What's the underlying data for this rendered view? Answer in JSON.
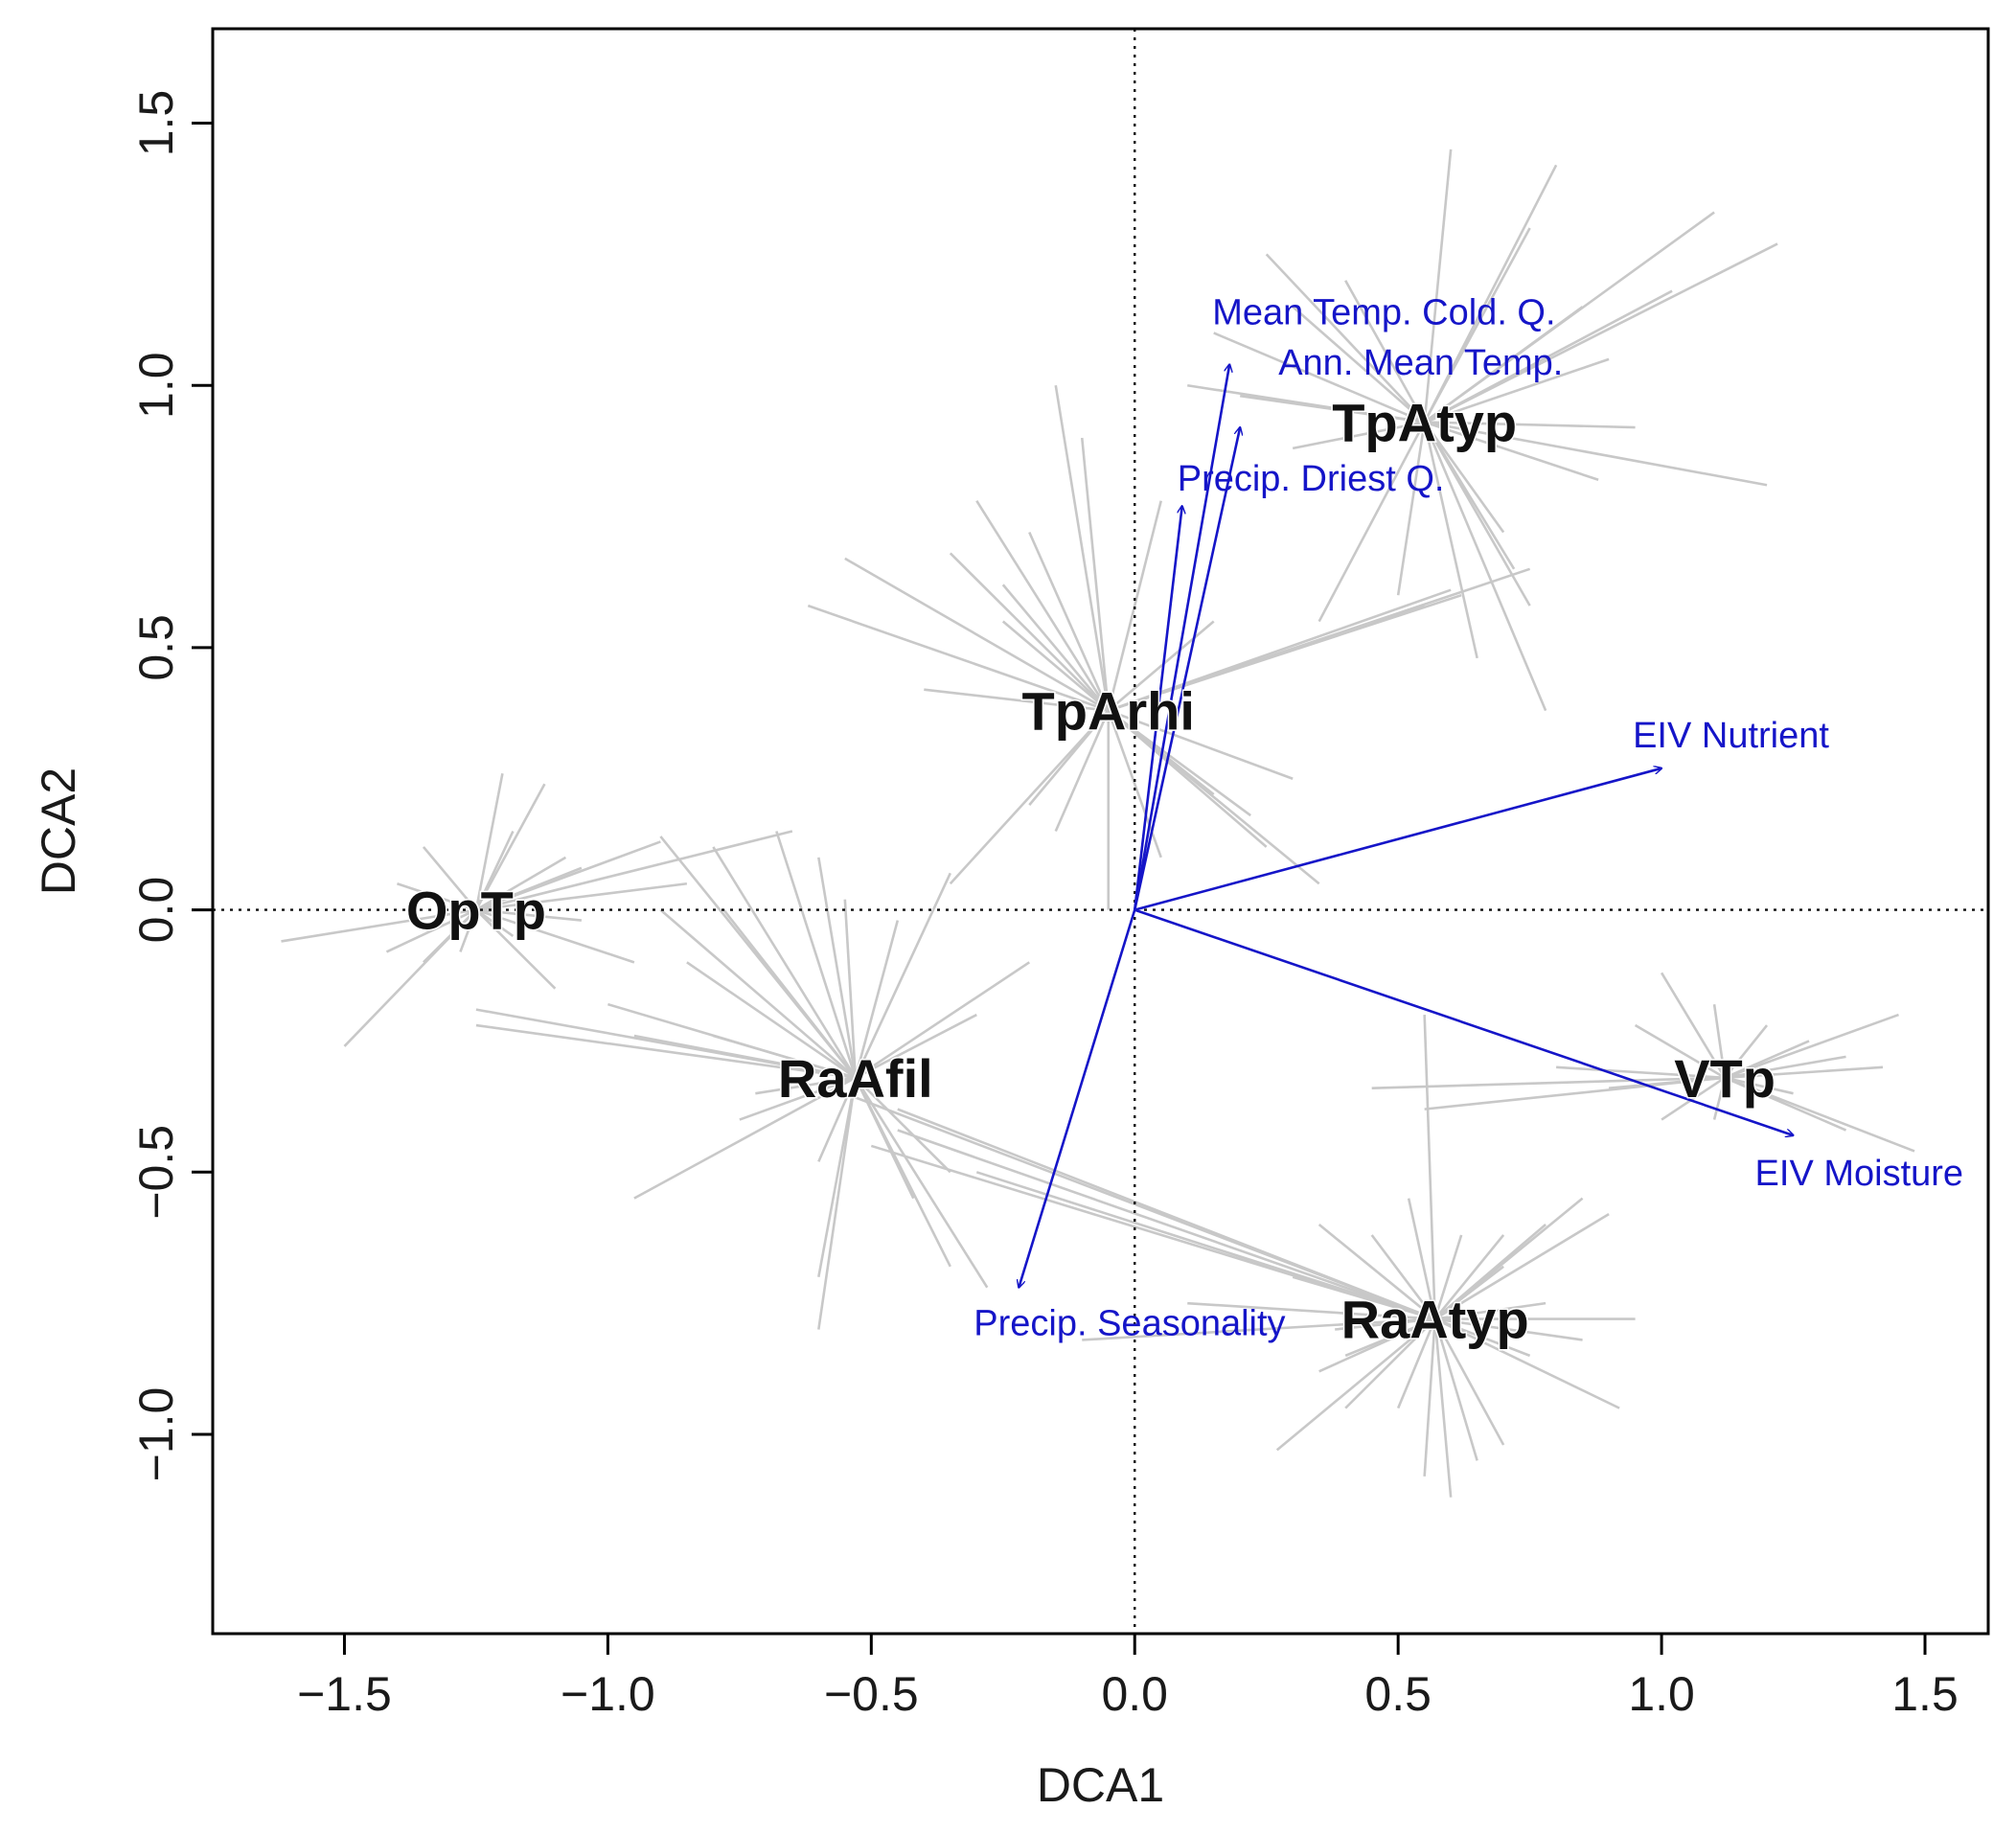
{
  "chart_data": {
    "type": "scatter",
    "subtype": "DCA ordination biplot with spider diagram and environmental fit vectors",
    "title": "",
    "xlabel": "DCA1",
    "ylabel": "DCA2",
    "xlim": [
      -1.75,
      1.62
    ],
    "ylim": [
      -1.38,
      1.68
    ],
    "xticks": [
      "-1.5",
      "-1.0",
      "-0.5",
      "0.0",
      "0.5",
      "1.0",
      "1.5"
    ],
    "yticks": [
      "-1.0",
      "-0.5",
      "0.0",
      "0.5",
      "1.0",
      "1.5"
    ],
    "reference_lines": {
      "x": 0,
      "y": 0,
      "style": "dotted"
    },
    "colors": {
      "spider": "#c8c8c8",
      "vector": "#1515c8",
      "group_label": "#111111",
      "axis": "#000000"
    },
    "groups": [
      {
        "name": "TpAtyp",
        "centroid": [
          0.55,
          0.93
        ],
        "spokes": [
          [
            0.6,
            1.45
          ],
          [
            0.8,
            1.42
          ],
          [
            0.75,
            1.3
          ],
          [
            1.1,
            1.33
          ],
          [
            1.22,
            1.27
          ],
          [
            1.02,
            1.18
          ],
          [
            0.85,
            1.15
          ],
          [
            0.25,
            1.25
          ],
          [
            0.3,
            1.15
          ],
          [
            0.15,
            1.1
          ],
          [
            0.4,
            1.2
          ],
          [
            0.9,
            1.05
          ],
          [
            1.2,
            0.81
          ],
          [
            0.95,
            0.92
          ],
          [
            0.1,
            1.0
          ],
          [
            0.2,
            0.98
          ],
          [
            0.7,
            0.72
          ],
          [
            0.75,
            0.58
          ],
          [
            0.5,
            0.6
          ],
          [
            0.78,
            0.38
          ],
          [
            0.65,
            0.48
          ],
          [
            0.35,
            0.55
          ],
          [
            0.72,
            0.65
          ],
          [
            0.88,
            0.82
          ],
          [
            0.3,
            0.88
          ]
        ]
      },
      {
        "name": "TpArhi",
        "centroid": [
          -0.05,
          0.38
        ],
        "spokes": [
          [
            -0.15,
            1.0
          ],
          [
            -0.1,
            0.9
          ],
          [
            -0.2,
            0.72
          ],
          [
            -0.35,
            0.68
          ],
          [
            -0.55,
            0.67
          ],
          [
            -0.62,
            0.58
          ],
          [
            -0.25,
            0.55
          ],
          [
            -0.4,
            0.42
          ],
          [
            -0.25,
            0.62
          ],
          [
            -0.3,
            0.78
          ],
          [
            0.05,
            0.78
          ],
          [
            0.15,
            0.55
          ],
          [
            0.6,
            0.61
          ],
          [
            0.75,
            0.65
          ],
          [
            0.55,
            0.58
          ],
          [
            0.62,
            0.6
          ],
          [
            0.3,
            0.25
          ],
          [
            0.25,
            0.12
          ],
          [
            0.35,
            0.05
          ],
          [
            0.22,
            0.18
          ],
          [
            -0.05,
            0.0
          ],
          [
            -0.15,
            0.15
          ],
          [
            -0.35,
            0.05
          ],
          [
            0.05,
            0.1
          ],
          [
            0.15,
            0.22
          ],
          [
            -0.2,
            0.2
          ]
        ]
      },
      {
        "name": "OpTp",
        "centroid": [
          -1.25,
          0.0
        ],
        "spokes": [
          [
            -1.62,
            -0.06
          ],
          [
            -1.5,
            -0.26
          ],
          [
            -1.42,
            -0.08
          ],
          [
            -1.2,
            0.26
          ],
          [
            -1.12,
            0.24
          ],
          [
            -1.35,
            0.12
          ],
          [
            -1.18,
            0.15
          ],
          [
            -0.9,
            0.13
          ],
          [
            -0.65,
            0.15
          ],
          [
            -0.85,
            0.05
          ],
          [
            -1.05,
            0.08
          ],
          [
            -1.1,
            -0.15
          ],
          [
            -1.35,
            -0.1
          ],
          [
            -1.4,
            0.05
          ],
          [
            -1.18,
            -0.05
          ],
          [
            -1.28,
            -0.08
          ],
          [
            -1.05,
            -0.02
          ],
          [
            -0.95,
            -0.1
          ],
          [
            -1.08,
            0.1
          ]
        ]
      },
      {
        "name": "RaAfil",
        "centroid": [
          -0.53,
          -0.32
        ],
        "spokes": [
          [
            -1.25,
            -0.19
          ],
          [
            -1.25,
            -0.22
          ],
          [
            -1.0,
            -0.18
          ],
          [
            -0.95,
            -0.24
          ],
          [
            -0.8,
            -0.24
          ],
          [
            -0.85,
            -0.1
          ],
          [
            -0.9,
            0.0
          ],
          [
            -0.9,
            0.14
          ],
          [
            -0.8,
            0.12
          ],
          [
            -0.68,
            0.15
          ],
          [
            -0.6,
            0.1
          ],
          [
            -0.78,
            0.0
          ],
          [
            -0.55,
            0.02
          ],
          [
            -0.45,
            -0.02
          ],
          [
            -0.35,
            0.07
          ],
          [
            -0.2,
            -0.1
          ],
          [
            -0.3,
            -0.2
          ],
          [
            -0.6,
            -0.48
          ],
          [
            -0.95,
            -0.55
          ],
          [
            -0.75,
            -0.4
          ],
          [
            -0.6,
            -0.7
          ],
          [
            -0.6,
            -0.8
          ],
          [
            -0.42,
            -0.55
          ],
          [
            -0.35,
            -0.68
          ],
          [
            -0.28,
            -0.72
          ],
          [
            -0.35,
            -0.5
          ],
          [
            -0.72,
            -0.35
          ]
        ]
      },
      {
        "name": "RaAtyp",
        "centroid": [
          0.57,
          -0.78
        ],
        "spokes": [
          [
            -0.1,
            -0.82
          ],
          [
            0.3,
            -0.7
          ],
          [
            0.35,
            -0.6
          ],
          [
            0.45,
            -0.62
          ],
          [
            0.1,
            -0.75
          ],
          [
            0.38,
            -0.8
          ],
          [
            0.4,
            -0.85
          ],
          [
            0.7,
            -0.62
          ],
          [
            0.78,
            -0.6
          ],
          [
            0.85,
            -0.55
          ],
          [
            0.9,
            -0.58
          ],
          [
            0.7,
            -0.68
          ],
          [
            0.78,
            -0.75
          ],
          [
            0.95,
            -0.78
          ],
          [
            0.85,
            -0.82
          ],
          [
            0.92,
            -0.95
          ],
          [
            0.75,
            -0.85
          ],
          [
            0.7,
            -1.02
          ],
          [
            0.65,
            -1.05
          ],
          [
            0.6,
            -1.12
          ],
          [
            0.55,
            -1.08
          ],
          [
            0.5,
            -0.95
          ],
          [
            0.4,
            -0.95
          ],
          [
            0.27,
            -1.03
          ],
          [
            0.35,
            -0.88
          ],
          [
            0.52,
            -0.55
          ],
          [
            0.62,
            -0.62
          ],
          [
            0.55,
            -0.2
          ],
          [
            -0.55,
            -0.35
          ],
          [
            -0.45,
            -0.42
          ],
          [
            -0.5,
            -0.45
          ],
          [
            -0.3,
            -0.5
          ],
          [
            -0.45,
            -0.38
          ]
        ]
      },
      {
        "name": "VTp",
        "centroid": [
          1.12,
          -0.32
        ],
        "spokes": [
          [
            1.0,
            -0.12
          ],
          [
            1.1,
            -0.18
          ],
          [
            1.2,
            -0.22
          ],
          [
            1.28,
            -0.25
          ],
          [
            1.45,
            -0.2
          ],
          [
            1.35,
            -0.28
          ],
          [
            1.42,
            -0.3
          ],
          [
            1.25,
            -0.35
          ],
          [
            1.48,
            -0.46
          ],
          [
            1.35,
            -0.42
          ],
          [
            1.0,
            -0.4
          ],
          [
            1.1,
            -0.4
          ],
          [
            0.45,
            -0.34
          ],
          [
            0.9,
            -0.34
          ],
          [
            0.8,
            -0.3
          ],
          [
            0.55,
            -0.38
          ],
          [
            0.95,
            -0.22
          ]
        ]
      }
    ],
    "vectors": [
      {
        "label": "Mean Temp. Cold. Q.",
        "x": 0.18,
        "y": 1.04
      },
      {
        "label": "Ann. Mean Temp.",
        "x": 0.2,
        "y": 0.92
      },
      {
        "label": "Precip. Driest Q.",
        "x": 0.09,
        "y": 0.77
      },
      {
        "label": "EIV Nutrient",
        "x": 1.0,
        "y": 0.27
      },
      {
        "label": "EIV Moisture",
        "x": 1.25,
        "y": -0.43
      },
      {
        "label": "Precip. Seasonality",
        "x": -0.22,
        "y": -0.72
      }
    ]
  }
}
